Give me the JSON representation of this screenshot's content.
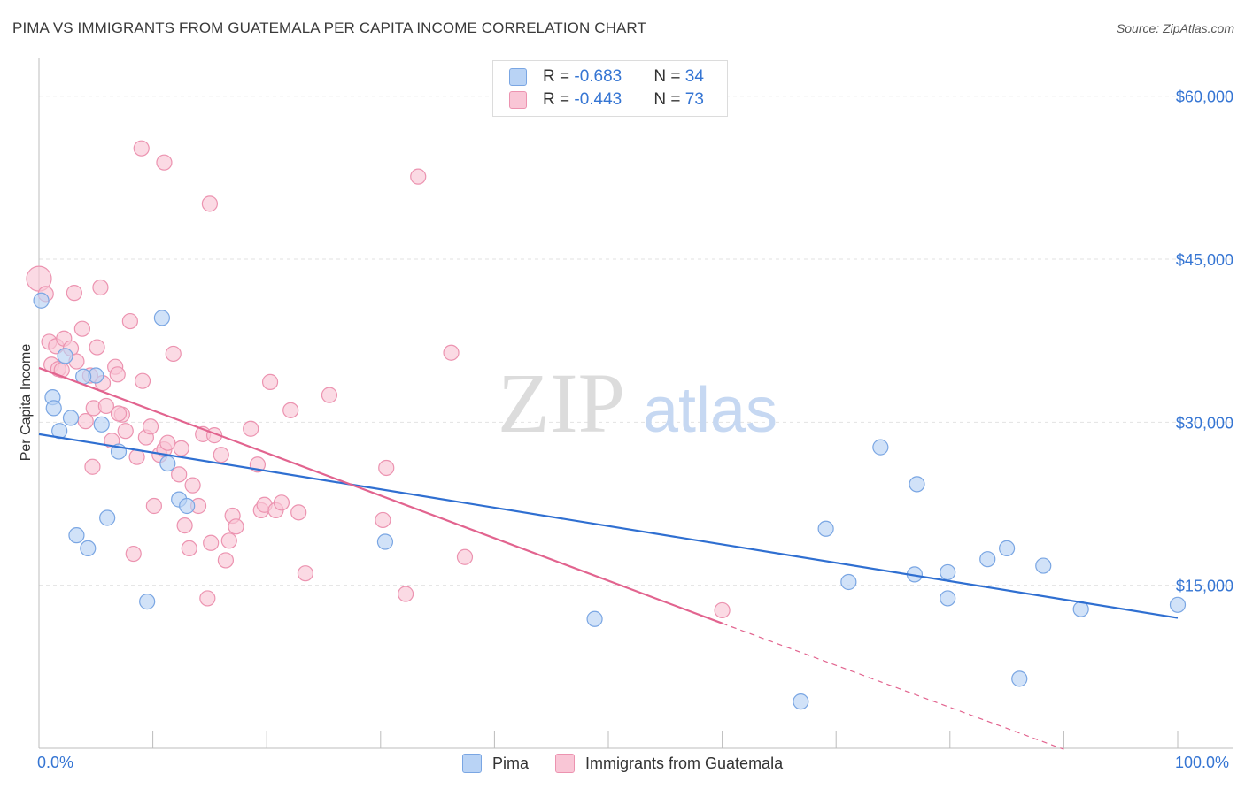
{
  "title": "PIMA VS IMMIGRANTS FROM GUATEMALA PER CAPITA INCOME CORRELATION CHART",
  "source": "Source: ZipAtlas.com",
  "watermark": {
    "zip": "ZIP",
    "atlas": "atlas"
  },
  "legend": {
    "rows": [
      {
        "r_label": "R = ",
        "r_value": "-0.683",
        "n_label": "N = ",
        "n_value": "34"
      },
      {
        "r_label": "R = ",
        "r_value": "-0.443",
        "n_label": "N = ",
        "n_value": "73"
      }
    ]
  },
  "colors": {
    "pima_fill": "#b9d3f5",
    "pima_stroke": "#7aa6e3",
    "pima_line": "#2f6fd1",
    "guat_fill": "#f9c6d6",
    "guat_stroke": "#ec93b0",
    "guat_line": "#e2648f",
    "axis_text": "#3575d3"
  },
  "chart_data": {
    "type": "scatter",
    "title": "PIMA VS IMMIGRANTS FROM GUATEMALA PER CAPITA INCOME CORRELATION CHART",
    "xlabel": "",
    "ylabel": "Per Capita Income",
    "xlim": [
      0,
      100
    ],
    "ylim": [
      0,
      62500
    ],
    "x_tick_labels": [
      "0.0%",
      "100.0%"
    ],
    "y_ticks": [
      15000,
      30000,
      45000,
      60000
    ],
    "y_tick_labels": [
      "$15,000",
      "$30,000",
      "$45,000",
      "$60,000"
    ],
    "series": [
      {
        "name": "Pima",
        "R": -0.683,
        "N": 34,
        "trend": {
          "x": [
            0,
            100
          ],
          "y": [
            28900,
            12000
          ]
        },
        "points": [
          [
            0.2,
            41200
          ],
          [
            1.2,
            32300
          ],
          [
            1.3,
            31300
          ],
          [
            1.8,
            29200
          ],
          [
            2.3,
            36100
          ],
          [
            2.8,
            30400
          ],
          [
            3.3,
            19600
          ],
          [
            4.3,
            18400
          ],
          [
            5.0,
            34300
          ],
          [
            5.5,
            29800
          ],
          [
            6.0,
            21200
          ],
          [
            7.0,
            27300
          ],
          [
            9.5,
            13500
          ],
          [
            10.8,
            39600
          ],
          [
            11.3,
            26200
          ],
          [
            12.3,
            22900
          ],
          [
            13.0,
            22300
          ],
          [
            30.4,
            19000
          ],
          [
            48.8,
            11900
          ],
          [
            66.9,
            4300
          ],
          [
            69.1,
            20200
          ],
          [
            71.1,
            15300
          ],
          [
            73.9,
            27700
          ],
          [
            76.9,
            16000
          ],
          [
            77.1,
            24300
          ],
          [
            79.8,
            16200
          ],
          [
            79.8,
            13800
          ],
          [
            83.3,
            17400
          ],
          [
            85.0,
            18400
          ],
          [
            86.1,
            6400
          ],
          [
            88.2,
            16800
          ],
          [
            91.5,
            12800
          ],
          [
            100.0,
            13200
          ],
          [
            3.9,
            34200
          ]
        ]
      },
      {
        "name": "Immigrants from Guatemala",
        "R": -0.443,
        "N": 73,
        "trend": {
          "x": [
            0,
            60
          ],
          "y": [
            35000,
            11500
          ]
        },
        "trend_dashed": {
          "x": [
            60,
            90
          ],
          "y": [
            11500,
            -100
          ]
        },
        "points": [
          [
            0.0,
            43200
          ],
          [
            0.6,
            41800
          ],
          [
            0.9,
            37400
          ],
          [
            1.1,
            35300
          ],
          [
            1.5,
            37000
          ],
          [
            1.7,
            34900
          ],
          [
            2.2,
            37700
          ],
          [
            2.8,
            36800
          ],
          [
            3.1,
            41900
          ],
          [
            3.3,
            35600
          ],
          [
            3.8,
            38600
          ],
          [
            4.1,
            30100
          ],
          [
            4.5,
            34300
          ],
          [
            4.7,
            25900
          ],
          [
            4.8,
            31300
          ],
          [
            5.1,
            36900
          ],
          [
            5.4,
            42400
          ],
          [
            5.6,
            33600
          ],
          [
            5.9,
            31500
          ],
          [
            6.4,
            28300
          ],
          [
            6.7,
            35100
          ],
          [
            6.9,
            34400
          ],
          [
            7.3,
            30700
          ],
          [
            7.6,
            29200
          ],
          [
            8.0,
            39300
          ],
          [
            8.3,
            17900
          ],
          [
            8.6,
            26800
          ],
          [
            9.1,
            33800
          ],
          [
            9.4,
            28600
          ],
          [
            9.8,
            29600
          ],
          [
            10.1,
            22300
          ],
          [
            10.6,
            27000
          ],
          [
            11.0,
            27500
          ],
          [
            11.3,
            28100
          ],
          [
            11.8,
            36300
          ],
          [
            12.3,
            25200
          ],
          [
            12.8,
            20500
          ],
          [
            13.2,
            18400
          ],
          [
            13.5,
            24200
          ],
          [
            14.0,
            22300
          ],
          [
            14.4,
            28900
          ],
          [
            14.8,
            13800
          ],
          [
            15.1,
            18900
          ],
          [
            15.4,
            28800
          ],
          [
            16.0,
            27000
          ],
          [
            16.4,
            17300
          ],
          [
            16.7,
            19100
          ],
          [
            17.0,
            21400
          ],
          [
            17.3,
            20400
          ],
          [
            18.6,
            29400
          ],
          [
            19.2,
            26100
          ],
          [
            19.5,
            21900
          ],
          [
            19.8,
            22400
          ],
          [
            20.3,
            33700
          ],
          [
            20.8,
            21900
          ],
          [
            21.3,
            22600
          ],
          [
            22.1,
            31100
          ],
          [
            22.8,
            21700
          ],
          [
            23.4,
            16100
          ],
          [
            25.5,
            32500
          ],
          [
            30.2,
            21000
          ],
          [
            30.5,
            25800
          ],
          [
            32.2,
            14200
          ],
          [
            33.3,
            52600
          ],
          [
            36.2,
            36400
          ],
          [
            37.4,
            17600
          ],
          [
            60.0,
            12700
          ],
          [
            9.0,
            55200
          ],
          [
            11.0,
            53900
          ],
          [
            15.0,
            50100
          ],
          [
            2.0,
            34800
          ],
          [
            7.0,
            30800
          ],
          [
            12.5,
            27600
          ]
        ]
      }
    ]
  }
}
